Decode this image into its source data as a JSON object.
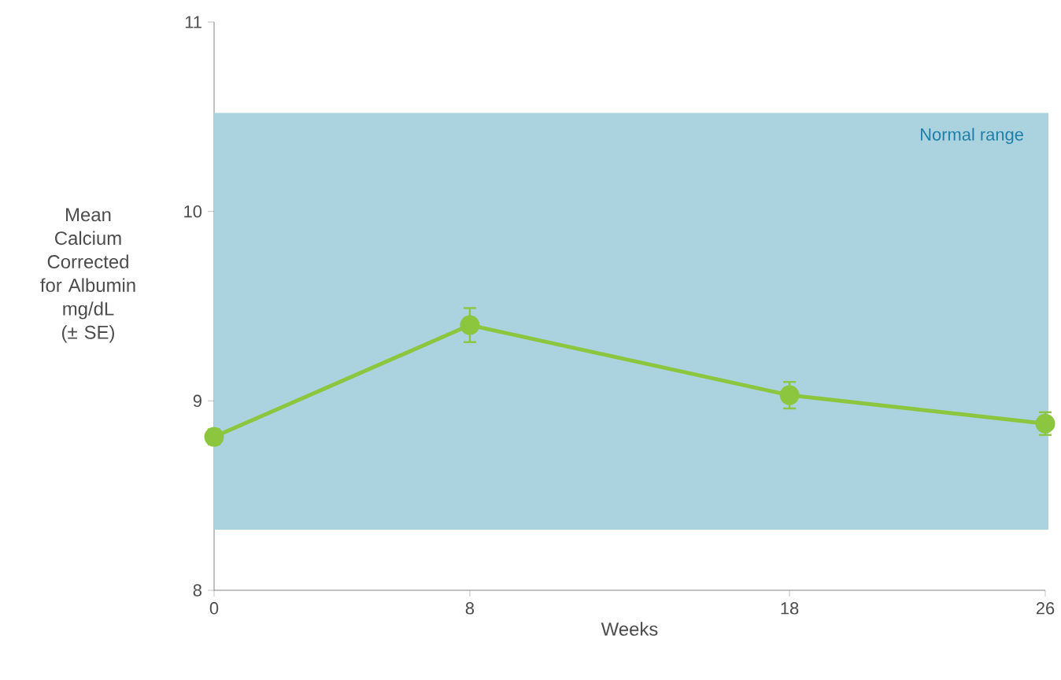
{
  "chart_data": {
    "type": "line",
    "xlabel": "Weeks",
    "ylabel": "Mean Calcium Corrected for Albumin mg/dL (± SE)",
    "x": [
      0,
      8,
      18,
      26
    ],
    "series": [
      {
        "color": "#8cc63f",
        "values": [
          8.81,
          9.4,
          9.03,
          8.88
        ],
        "errors": [
          0.04,
          0.09,
          0.07,
          0.06
        ]
      }
    ],
    "xlim": [
      0,
      26
    ],
    "xticks": [
      0,
      8,
      18,
      26
    ],
    "ylim": [
      8,
      11
    ],
    "yticks": [
      8,
      9,
      10,
      11
    ],
    "bands": [
      {
        "axis": "y",
        "from": 8.32,
        "to": 10.52,
        "label": "Normal range",
        "color": "#aad3df"
      }
    ],
    "marker": "circle",
    "line_style": "solid",
    "grid": false
  }
}
